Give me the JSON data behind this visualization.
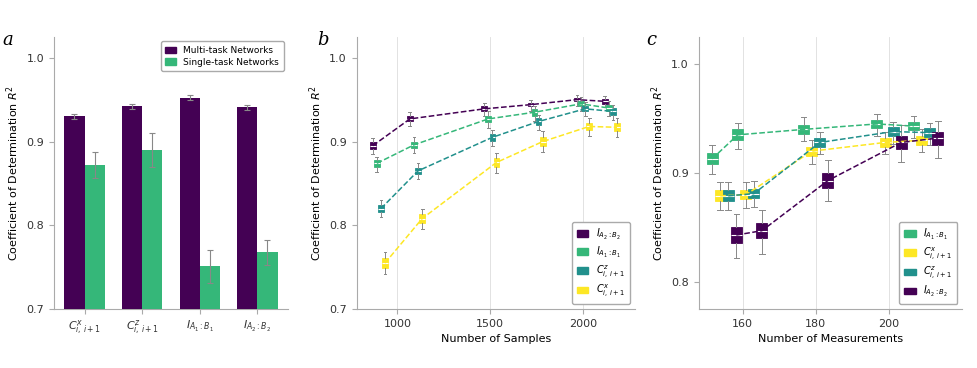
{
  "colors": {
    "purple": "#440154",
    "green": "#35b779",
    "teal": "#21908c",
    "yellow": "#fde725"
  },
  "panel_a": {
    "multi_task": [
      0.93,
      0.942,
      0.952,
      0.941
    ],
    "multi_task_err": [
      0.003,
      0.003,
      0.003,
      0.003
    ],
    "single_task": [
      0.872,
      0.89,
      0.751,
      0.768
    ],
    "single_task_err": [
      0.015,
      0.02,
      0.02,
      0.015
    ],
    "ylim": [
      0.7,
      1.025
    ],
    "yticks": [
      0.7,
      0.8,
      0.9,
      1.0
    ],
    "bar_width": 0.35
  },
  "panel_b": {
    "x": [
      900,
      1100,
      1500,
      1750,
      2000,
      2150
    ],
    "IA2B2": {
      "medians": [
        0.895,
        0.927,
        0.939,
        0.944,
        0.95,
        0.948
      ],
      "q1": [
        0.891,
        0.924,
        0.936,
        0.942,
        0.948,
        0.945
      ],
      "q3": [
        0.899,
        0.93,
        0.942,
        0.946,
        0.952,
        0.951
      ],
      "whislo": [
        0.885,
        0.918,
        0.93,
        0.937,
        0.943,
        0.941
      ],
      "whishi": [
        0.904,
        0.935,
        0.946,
        0.95,
        0.956,
        0.954
      ]
    },
    "IA1B1": {
      "medians": [
        0.874,
        0.896,
        0.927,
        0.935,
        0.945,
        0.94
      ],
      "q1": [
        0.87,
        0.892,
        0.923,
        0.931,
        0.942,
        0.936
      ],
      "q3": [
        0.878,
        0.9,
        0.931,
        0.939,
        0.948,
        0.944
      ],
      "whislo": [
        0.864,
        0.886,
        0.916,
        0.925,
        0.936,
        0.93
      ],
      "whishi": [
        0.882,
        0.905,
        0.936,
        0.943,
        0.953,
        0.948
      ]
    },
    "Cz": {
      "medians": [
        0.82,
        0.865,
        0.905,
        0.924,
        0.939,
        0.936
      ],
      "q1": [
        0.816,
        0.861,
        0.901,
        0.92,
        0.936,
        0.932
      ],
      "q3": [
        0.824,
        0.869,
        0.909,
        0.928,
        0.942,
        0.94
      ],
      "whislo": [
        0.81,
        0.855,
        0.895,
        0.914,
        0.93,
        0.926
      ],
      "whishi": [
        0.83,
        0.874,
        0.914,
        0.932,
        0.947,
        0.944
      ]
    },
    "Cx": {
      "medians": [
        0.755,
        0.808,
        0.875,
        0.9,
        0.918,
        0.917
      ],
      "q1": [
        0.749,
        0.803,
        0.87,
        0.895,
        0.914,
        0.912
      ],
      "q3": [
        0.761,
        0.813,
        0.88,
        0.905,
        0.922,
        0.922
      ],
      "whislo": [
        0.742,
        0.796,
        0.862,
        0.888,
        0.907,
        0.905
      ],
      "whishi": [
        0.768,
        0.819,
        0.886,
        0.912,
        0.928,
        0.928
      ]
    },
    "ylim": [
      0.7,
      1.025
    ],
    "yticks": [
      0.7,
      0.8,
      0.9,
      1.0
    ],
    "xlim": [
      780,
      2280
    ],
    "xticks": [
      1000,
      1500,
      2000
    ]
  },
  "panel_c": {
    "x": [
      155,
      162,
      180,
      200,
      210
    ],
    "IA1B1": {
      "medians": [
        0.913,
        0.935,
        0.94,
        0.945,
        0.943
      ],
      "q1": [
        0.908,
        0.93,
        0.936,
        0.941,
        0.939
      ],
      "q3": [
        0.918,
        0.94,
        0.944,
        0.949,
        0.947
      ],
      "whislo": [
        0.899,
        0.922,
        0.929,
        0.934,
        0.932
      ],
      "whishi": [
        0.926,
        0.946,
        0.951,
        0.954,
        0.952
      ]
    },
    "Cx": {
      "medians": [
        0.879,
        0.88,
        0.92,
        0.928,
        0.93
      ],
      "q1": [
        0.874,
        0.876,
        0.916,
        0.924,
        0.926
      ],
      "q3": [
        0.884,
        0.884,
        0.924,
        0.932,
        0.934
      ],
      "whislo": [
        0.866,
        0.868,
        0.908,
        0.917,
        0.919
      ],
      "whishi": [
        0.892,
        0.892,
        0.93,
        0.938,
        0.94
      ]
    },
    "Cz": {
      "medians": [
        0.879,
        0.881,
        0.928,
        0.938,
        0.937
      ],
      "q1": [
        0.874,
        0.877,
        0.924,
        0.934,
        0.933
      ],
      "q3": [
        0.884,
        0.885,
        0.932,
        0.942,
        0.941
      ],
      "whislo": [
        0.866,
        0.869,
        0.917,
        0.927,
        0.926
      ],
      "whishi": [
        0.892,
        0.893,
        0.938,
        0.947,
        0.946
      ]
    },
    "IA2B2": {
      "medians": [
        0.843,
        0.847,
        0.893,
        0.928,
        0.932
      ],
      "q1": [
        0.836,
        0.84,
        0.886,
        0.922,
        0.926
      ],
      "q3": [
        0.85,
        0.854,
        0.9,
        0.934,
        0.938
      ],
      "whislo": [
        0.822,
        0.826,
        0.874,
        0.91,
        0.914
      ],
      "whishi": [
        0.862,
        0.866,
        0.912,
        0.944,
        0.948
      ]
    },
    "ylim": [
      0.775,
      1.025
    ],
    "yticks": [
      0.8,
      0.9,
      1.0
    ],
    "xlim": [
      148,
      220
    ],
    "xticks": [
      160,
      180,
      200
    ]
  }
}
